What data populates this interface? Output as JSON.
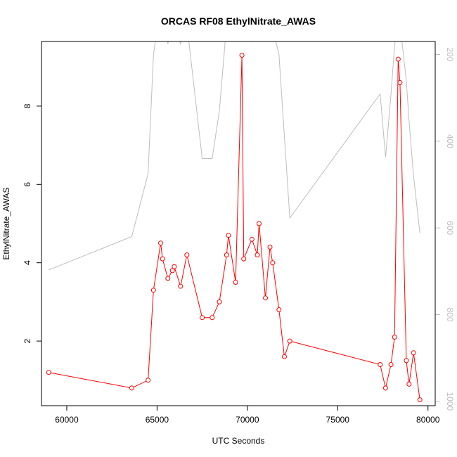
{
  "chart_data": {
    "type": "line",
    "title": "ORCAS RF08 EthylNitrate_AWAS",
    "xlabel": "UTC Seconds",
    "ylabel": "EthylNitrate_AWAS",
    "xlim": [
      58600,
      80400
    ],
    "ylim": [
      0.35,
      9.65
    ],
    "y2lim": [
      1010,
      170
    ],
    "x_ticks": [
      60000,
      65000,
      70000,
      75000,
      80000
    ],
    "y_ticks": [
      2,
      4,
      6,
      8
    ],
    "y2_ticks": [
      200,
      400,
      600,
      800,
      1000
    ],
    "colors": {
      "primary": "#ff0000",
      "secondary": "#bebebe",
      "axis": "#000000"
    },
    "series": [
      {
        "axis": "left",
        "points": [
          [
            59000,
            1.2
          ],
          [
            63600,
            0.8
          ],
          [
            64500,
            1.0
          ],
          [
            64800,
            3.3
          ],
          [
            65200,
            4.5
          ],
          [
            65300,
            4.1
          ],
          [
            65600,
            3.6
          ],
          [
            65850,
            3.8
          ],
          [
            65950,
            3.9
          ],
          [
            66300,
            3.4
          ],
          [
            66650,
            4.2
          ],
          [
            67500,
            2.6
          ],
          [
            68050,
            2.6
          ],
          [
            68450,
            3.0
          ],
          [
            68850,
            4.2
          ],
          [
            68950,
            4.7
          ],
          [
            69350,
            3.5
          ],
          [
            69700,
            9.3
          ],
          [
            69800,
            4.1
          ],
          [
            70250,
            4.6
          ],
          [
            70550,
            4.2
          ],
          [
            70650,
            5.0
          ],
          [
            71000,
            3.1
          ],
          [
            71250,
            4.4
          ],
          [
            71400,
            4.0
          ],
          [
            71750,
            2.8
          ],
          [
            72050,
            1.6
          ],
          [
            72350,
            2.0
          ],
          [
            77350,
            1.4
          ],
          [
            77650,
            0.8
          ],
          [
            77950,
            1.4
          ],
          [
            78150,
            2.1
          ],
          [
            78350,
            9.2
          ],
          [
            78450,
            8.6
          ],
          [
            78800,
            1.5
          ],
          [
            78950,
            0.9
          ],
          [
            79200,
            1.7
          ],
          [
            79550,
            0.5
          ]
        ]
      },
      {
        "axis": "right",
        "points": [
          [
            59000,
            697
          ],
          [
            63600,
            620
          ],
          [
            64500,
            475
          ],
          [
            64800,
            200
          ],
          [
            65000,
            140
          ],
          [
            65200,
            100
          ],
          [
            65300,
            100
          ],
          [
            65600,
            175
          ],
          [
            65850,
            130
          ],
          [
            65950,
            130
          ],
          [
            66300,
            175
          ],
          [
            66650,
            130
          ],
          [
            67500,
            440
          ],
          [
            68050,
            440
          ],
          [
            68450,
            330
          ],
          [
            68850,
            130
          ],
          [
            68950,
            120
          ],
          [
            69350,
            160
          ],
          [
            69700,
            120
          ],
          [
            69800,
            130
          ],
          [
            70250,
            170
          ],
          [
            70550,
            130
          ],
          [
            70650,
            130
          ],
          [
            71000,
            165
          ],
          [
            71250,
            130
          ],
          [
            71400,
            140
          ],
          [
            71750,
            200
          ],
          [
            72350,
            577
          ],
          [
            77350,
            291
          ],
          [
            77650,
            437
          ],
          [
            77950,
            292
          ],
          [
            78150,
            180
          ],
          [
            78350,
            120
          ],
          [
            78450,
            130
          ],
          [
            78800,
            260
          ],
          [
            78950,
            353
          ],
          [
            79200,
            480
          ],
          [
            79550,
            612
          ]
        ]
      }
    ]
  }
}
